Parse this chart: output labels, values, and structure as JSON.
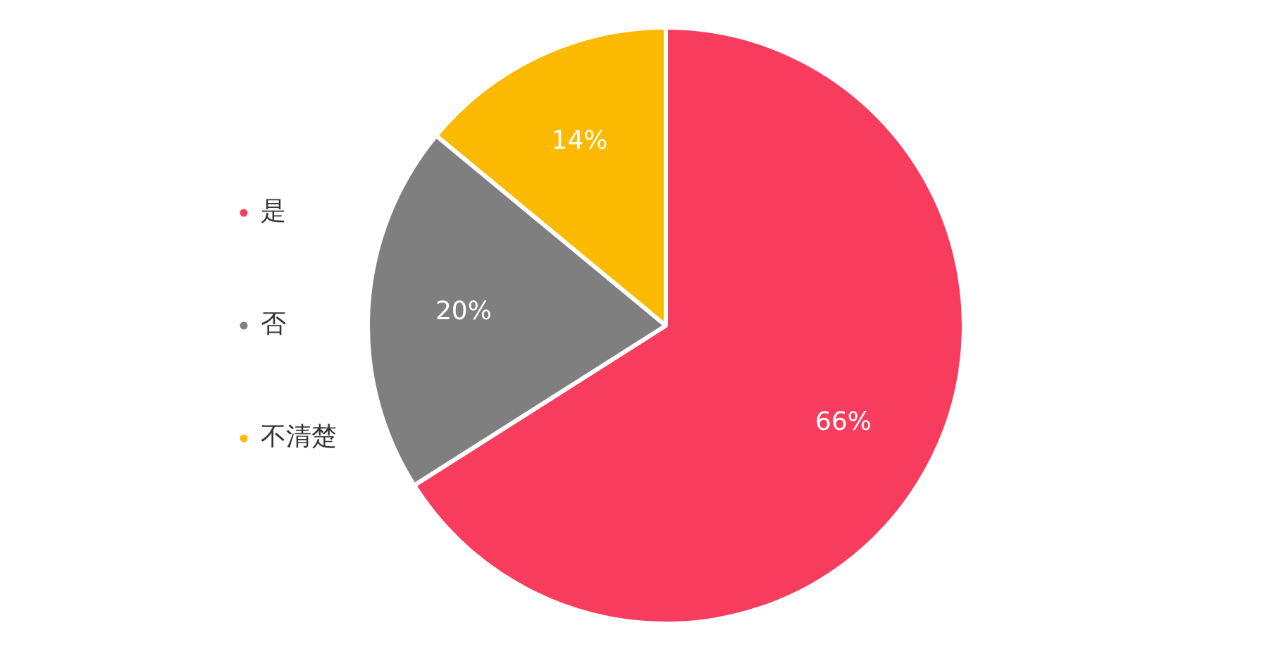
{
  "chart_data": {
    "type": "pie",
    "categories": [
      "是",
      "否",
      "不清楚"
    ],
    "values": [
      66,
      20,
      14
    ],
    "colors": [
      "#f73c5e",
      "#7f7f7f",
      "#fbb900"
    ],
    "value_labels": [
      "66%",
      "20%",
      "14%"
    ],
    "legend": "left"
  }
}
